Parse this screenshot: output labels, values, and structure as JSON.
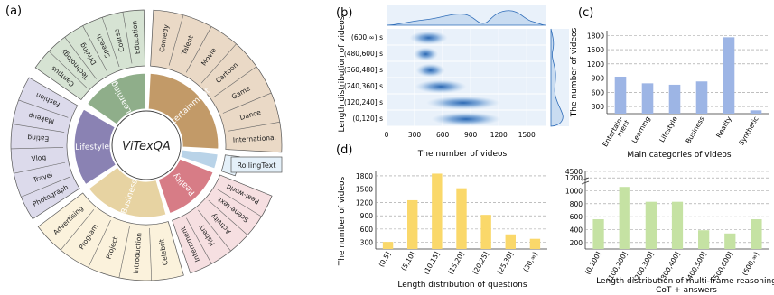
{
  "panel_labels": [
    "(a)",
    "(b)",
    "(c)",
    "(d)"
  ],
  "wheel": {
    "center_label": "ViTexQA",
    "colors": {
      "Learning": {
        "inner": "#8fae8a",
        "outer": "#d6e3d3"
      },
      "Entertainment": {
        "inner": "#c29a68",
        "outer": "#ead9c6"
      },
      "RollingText": {
        "inner": "#b9d3e8",
        "outer": "#e4f0f9"
      },
      "Reality": {
        "inner": "#d77c86",
        "outer": "#f6dfe1"
      },
      "Business": {
        "inner": "#e7d3a2",
        "outer": "#fbf2dc"
      },
      "Lifestyle": {
        "inner": "#8a82b3",
        "outer": "#dcdaeb"
      }
    },
    "categories": [
      {
        "name": "Learning",
        "subs": [
          "Campus",
          "Technology",
          "Driving",
          "Speech",
          "Course",
          "Education"
        ]
      },
      {
        "name": "Entertainment",
        "subs": [
          "Comedy",
          "Talent",
          "Movie",
          "Cartoon",
          "Game",
          "Dance",
          "International"
        ]
      },
      {
        "name": "RollingText",
        "subs": []
      },
      {
        "name": "Reality",
        "subs": [
          "Real-world",
          "Scene-text",
          "Activity",
          "Fishery",
          "Internment"
        ]
      },
      {
        "name": "Business",
        "subs": [
          "Celebrit",
          "Introduction",
          "Project",
          "Program",
          "Advertising"
        ]
      },
      {
        "name": "Lifestyle",
        "subs": [
          "Photograph",
          "Travel",
          "Vlog",
          "Eating",
          "Makeup",
          "Fashion"
        ]
      }
    ]
  },
  "chart_data": [
    {
      "id": "b",
      "type": "heatmap",
      "xlabel": "The number of videos",
      "ylabel": "Length distribution of videos",
      "x_ticks": [
        0,
        300,
        600,
        900,
        1200,
        1500
      ],
      "xlim": [
        0,
        1700
      ],
      "categories": [
        "(0,120] s",
        "(120,240] s",
        "(240,360] s",
        "(360,480] s",
        "(480,600] s",
        "(600,∞) s"
      ],
      "density_center": [
        850,
        820,
        580,
        470,
        420,
        450
      ],
      "density_spread": [
        310,
        330,
        230,
        130,
        110,
        170
      ],
      "color": "#2e6cb8"
    },
    {
      "id": "c",
      "type": "bar",
      "xlabel": "Main categories of videos",
      "ylabel": "The number of videos",
      "categories": [
        "Entertain-\nment",
        "Learning",
        "Lifestyle",
        "Business",
        "Reality",
        "Synthetic"
      ],
      "values": [
        930,
        790,
        760,
        830,
        1760,
        220
      ],
      "y_ticks": [
        300,
        600,
        900,
        1200,
        1500,
        1800
      ],
      "ylim": [
        150,
        1900
      ],
      "color": "#9db5e5"
    },
    {
      "id": "d1",
      "type": "bar",
      "xlabel": "Length distribution of questions",
      "ylabel": "The number of videos",
      "categories": [
        "(0,5]",
        "(5,10]",
        "(10,15]",
        "(15,20]",
        "(20,25]",
        "(25,30]",
        "(30,∞)"
      ],
      "values": [
        310,
        1250,
        1850,
        1520,
        920,
        480,
        380
      ],
      "y_ticks": [
        300,
        600,
        900,
        1200,
        1500,
        1800
      ],
      "ylim": [
        150,
        1900
      ],
      "color": "#fad86a"
    },
    {
      "id": "d2",
      "type": "bar",
      "xlabel": "Length distribution of multi-frame reasoning\nCoT + answers",
      "ylabel": "",
      "categories": [
        "(0,100]",
        "(100,200]",
        "(200,300]",
        "(300,400]",
        "(400,500]",
        "(500,600]",
        "(600,∞)"
      ],
      "values": [
        560,
        1060,
        830,
        830,
        390,
        340,
        560
      ],
      "y_ticks": [
        200,
        400,
        600,
        800,
        1000,
        1200,
        4500
      ],
      "ylim": [
        100,
        1300
      ],
      "axis_break": true,
      "color": "#c5e2a3"
    }
  ]
}
